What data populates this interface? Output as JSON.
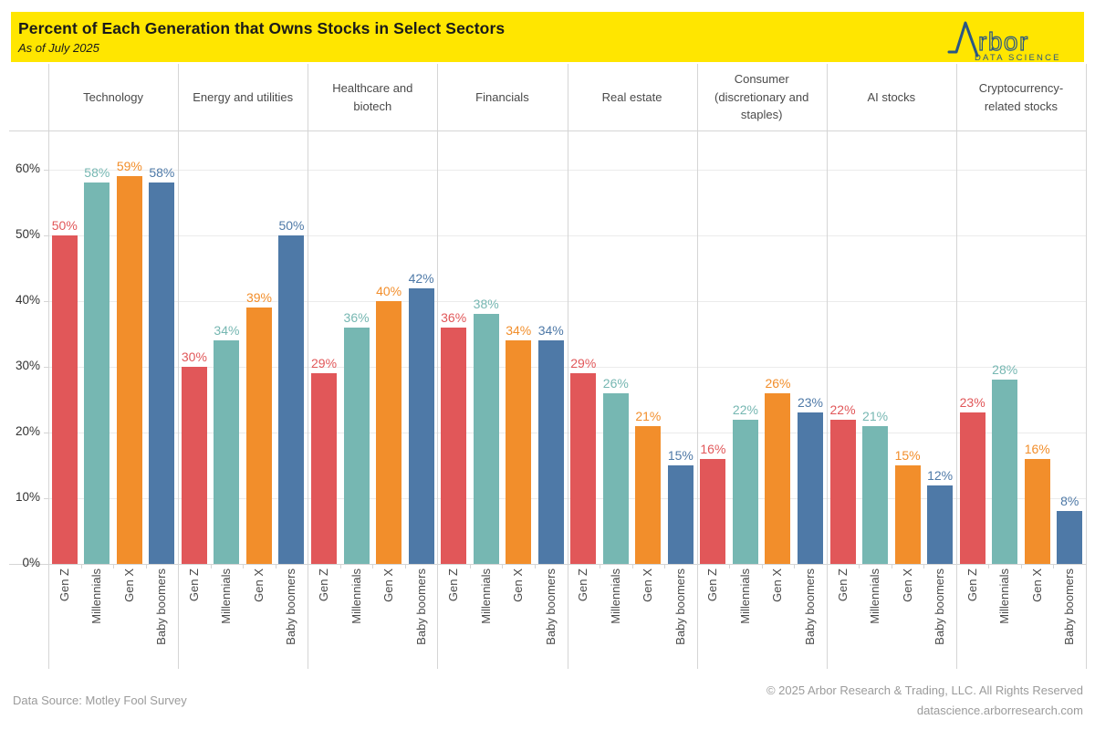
{
  "header": {
    "title": "Percent of Each Generation that Owns Stocks in Select Sectors",
    "subtitle": "As of July 2025",
    "banner_color": "#FFE600",
    "logo": {
      "brand_outline_text": "rbor",
      "tagline": "DATA SCIENCE",
      "color": "#2A5784"
    }
  },
  "chart_data": {
    "type": "bar",
    "title": "Percent of Each Generation that Owns Stocks in Select Sectors",
    "subtitle": "As of July 2025",
    "categories": [
      "Technology",
      "Energy and utilities",
      "Healthcare and biotech",
      "Financials",
      "Real estate",
      "Consumer (discretionary and staples)",
      "AI stocks",
      "Cryptocurrency-related stocks"
    ],
    "series": [
      {
        "name": "Gen Z",
        "color": "#E15759",
        "values": [
          50,
          30,
          29,
          36,
          29,
          16,
          22,
          23
        ]
      },
      {
        "name": "Millennials",
        "color": "#76B7B2",
        "values": [
          58,
          34,
          36,
          38,
          26,
          22,
          21,
          28
        ]
      },
      {
        "name": "Gen X",
        "color": "#F28E2B",
        "values": [
          59,
          39,
          40,
          34,
          21,
          26,
          15,
          16
        ]
      },
      {
        "name": "Baby boomers",
        "color": "#4E79A7",
        "values": [
          58,
          50,
          42,
          34,
          15,
          23,
          12,
          8
        ]
      }
    ],
    "value_label_format": "{v}%",
    "yticks": [
      0,
      10,
      20,
      30,
      40,
      50,
      60
    ],
    "ytick_labels": [
      "0%",
      "10%",
      "20%",
      "30%",
      "40%",
      "50%",
      "60%"
    ],
    "ylim": [
      0,
      66
    ],
    "grid": true,
    "legend": "none",
    "xlabel": "",
    "ylabel": ""
  },
  "footer": {
    "source": "Data Source: Motley Fool Survey",
    "copyright": "© 2025 Arbor Research & Trading, LLC. All Rights Reserved",
    "website": "datascience.arborresearch.com"
  }
}
